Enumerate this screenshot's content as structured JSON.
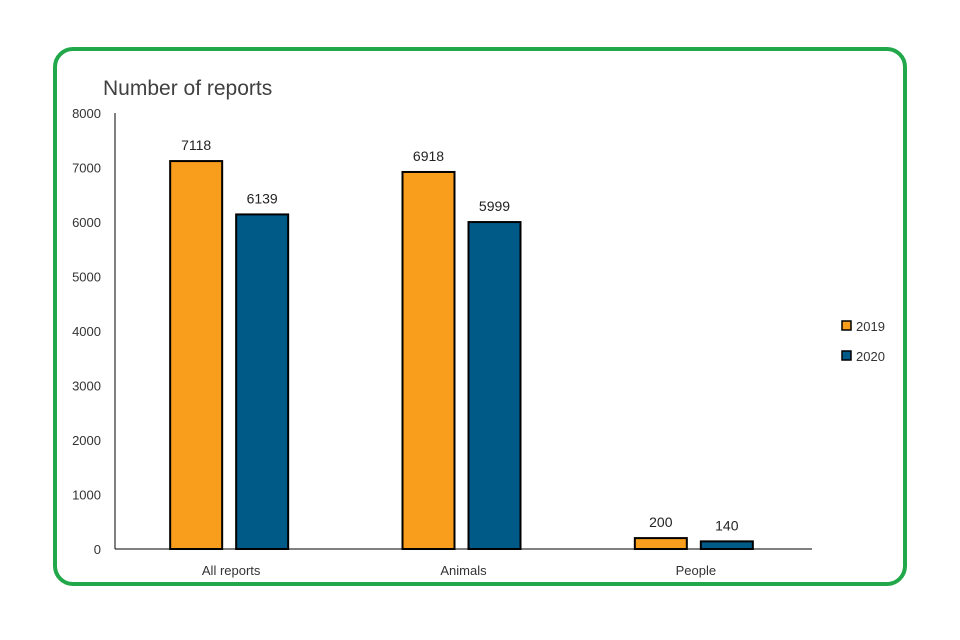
{
  "colors": {
    "frame": "#22a84a",
    "series_2019": "#f99d1c",
    "series_2020": "#005a87",
    "outline": "#000000"
  },
  "chart_data": {
    "type": "bar",
    "title": "Number of reports",
    "xlabel": "",
    "ylabel": "",
    "categories": [
      "All reports",
      "Animals",
      "People"
    ],
    "series": [
      {
        "name": "2019",
        "values": [
          7118,
          6918,
          200
        ]
      },
      {
        "name": "2020",
        "values": [
          6139,
          5999,
          140
        ]
      }
    ],
    "ylim": [
      0,
      8000
    ],
    "yticks": [
      "0",
      "1000",
      "2000",
      "3000",
      "4000",
      "5000",
      "6000",
      "7000",
      "8000"
    ],
    "grid": false,
    "legend": "right"
  }
}
